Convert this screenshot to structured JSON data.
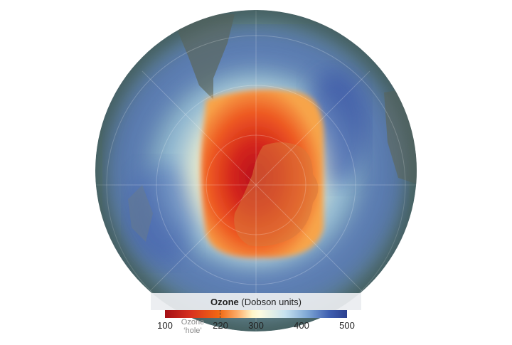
{
  "legend": {
    "title_bold": "Ozone",
    "title_rest": " (Dobson units)",
    "hole_line1": "Ozone",
    "hole_line2": "‘hole’",
    "ticks": [
      "100",
      "220",
      "300",
      "400",
      "500"
    ]
  },
  "colors": {
    "hole_core": "#c0161b",
    "hole_edge": "#f26b1f",
    "boundary": "#fdf6c4",
    "mid_ozone": "#9cc3df",
    "high_ozone": "#3a55a8",
    "land_overlay": "#5c6a63"
  }
}
